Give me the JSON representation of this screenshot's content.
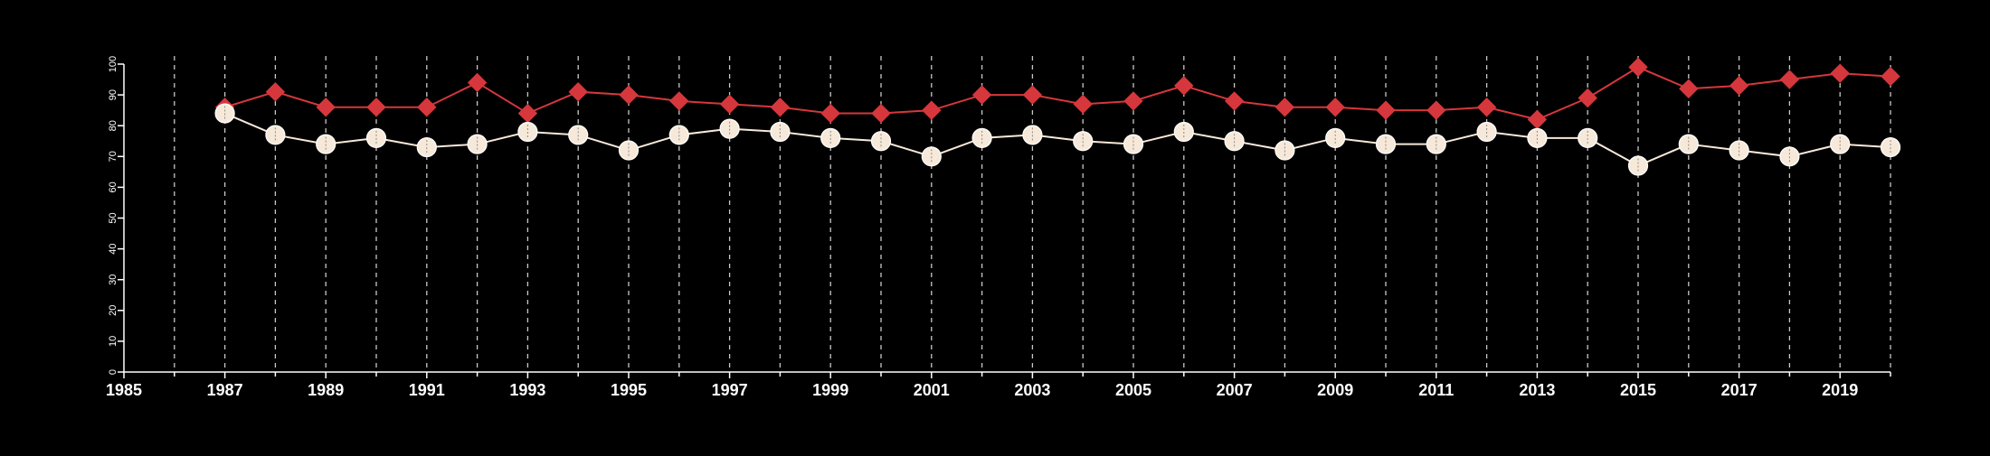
{
  "chart_data": {
    "type": "line",
    "title": "",
    "xlabel": "",
    "ylabel": "",
    "xlim": [
      1985,
      2020
    ],
    "ylim": [
      0,
      100
    ],
    "x_ticks": [
      "1985",
      "1987",
      "1989",
      "1991",
      "1993",
      "1995",
      "1997",
      "1999",
      "2001",
      "2003",
      "2005",
      "2007",
      "2009",
      "2011",
      "2013",
      "2015",
      "2017",
      "2019"
    ],
    "y_ticks": [
      "0",
      "10",
      "20",
      "30",
      "40",
      "50",
      "60",
      "70",
      "80",
      "90",
      "100"
    ],
    "grid": "vertical dashed lines at each year",
    "legend": "none",
    "x": [
      1987,
      1988,
      1989,
      1990,
      1991,
      1992,
      1993,
      1994,
      1995,
      1996,
      1997,
      1998,
      1999,
      2000,
      2001,
      2002,
      2003,
      2004,
      2005,
      2006,
      2007,
      2008,
      2009,
      2010,
      2011,
      2012,
      2013,
      2014,
      2015,
      2016,
      2017,
      2018,
      2019,
      2020
    ],
    "series": [
      {
        "marker": "diamond",
        "color": "#d6373c",
        "values": [
          86,
          91,
          86,
          86,
          86,
          94,
          84,
          91,
          90,
          88,
          87,
          86,
          84,
          84,
          85,
          90,
          90,
          87,
          88,
          93,
          88,
          86,
          86,
          85,
          85,
          86,
          82,
          89,
          99,
          92,
          93,
          95,
          97,
          96
        ]
      },
      {
        "marker": "circle",
        "color": "#f7e9d9",
        "values": [
          84,
          77,
          74,
          76,
          73,
          74,
          78,
          77,
          72,
          77,
          79,
          78,
          76,
          75,
          70,
          76,
          77,
          75,
          74,
          78,
          75,
          72,
          76,
          74,
          74,
          78,
          76,
          76,
          67,
          74,
          72,
          70,
          74,
          73
        ]
      }
    ]
  }
}
